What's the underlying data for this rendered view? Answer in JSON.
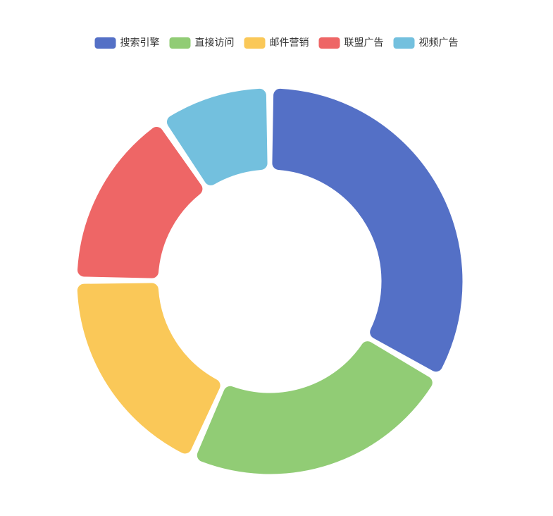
{
  "chart_data": {
    "type": "pie",
    "variant": "donut",
    "title": "",
    "legend_position": "top-center",
    "categories": [
      "搜索引擎",
      "直接访问",
      "邮件营销",
      "联盟广告",
      "视频广告"
    ],
    "values": [
      1048,
      735,
      580,
      484,
      300
    ],
    "colors": [
      "#5470c6",
      "#91cc75",
      "#fac858",
      "#ee6666",
      "#73c0de"
    ]
  }
}
